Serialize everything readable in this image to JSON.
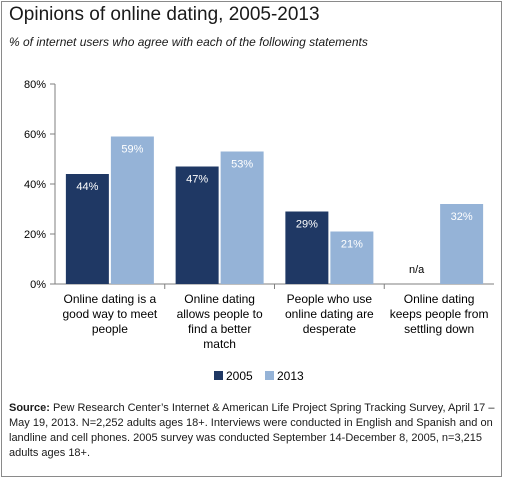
{
  "title": "Opinions of online dating, 2005-2013",
  "subtitle": "% of internet users who agree with each of the following statements",
  "colors": {
    "2005": "#1f3864",
    "2013": "#95b3d7"
  },
  "chart_data": {
    "type": "bar",
    "title": "Opinions of online dating, 2005-2013",
    "subtitle": "% of internet users who agree with each of the following statements",
    "categories": [
      [
        "Online dating is a",
        "good way to meet",
        "people"
      ],
      [
        "Online dating",
        "allows people to",
        "find a better",
        "match"
      ],
      [
        "People who use",
        "online dating are",
        "desperate"
      ],
      [
        "Online dating",
        "keeps people from",
        "settling down"
      ]
    ],
    "series": [
      {
        "name": "2005",
        "values": [
          44,
          47,
          29,
          null
        ],
        "labels": [
          "44%",
          "47%",
          "29%",
          "n/a"
        ]
      },
      {
        "name": "2013",
        "values": [
          59,
          53,
          21,
          32
        ],
        "labels": [
          "59%",
          "53%",
          "21%",
          "32%"
        ]
      }
    ],
    "ylim": [
      0,
      80
    ],
    "yticks": [
      "0%",
      "20%",
      "40%",
      "60%",
      "80%"
    ],
    "ytick_values": [
      0,
      20,
      40,
      60,
      80
    ],
    "grid": false,
    "legend": "bottom"
  },
  "source": {
    "label": "Source:",
    "text": " Pew Research Center’s Internet & American Life Project Spring Tracking Survey, April 17 – May 19, 2013. N=2,252 adults ages 18+. Interviews were conducted in English and Spanish and on landline and cell phones.  2005 survey was conducted September 14-December 8, 2005, n=3,215 adults ages 18+."
  }
}
